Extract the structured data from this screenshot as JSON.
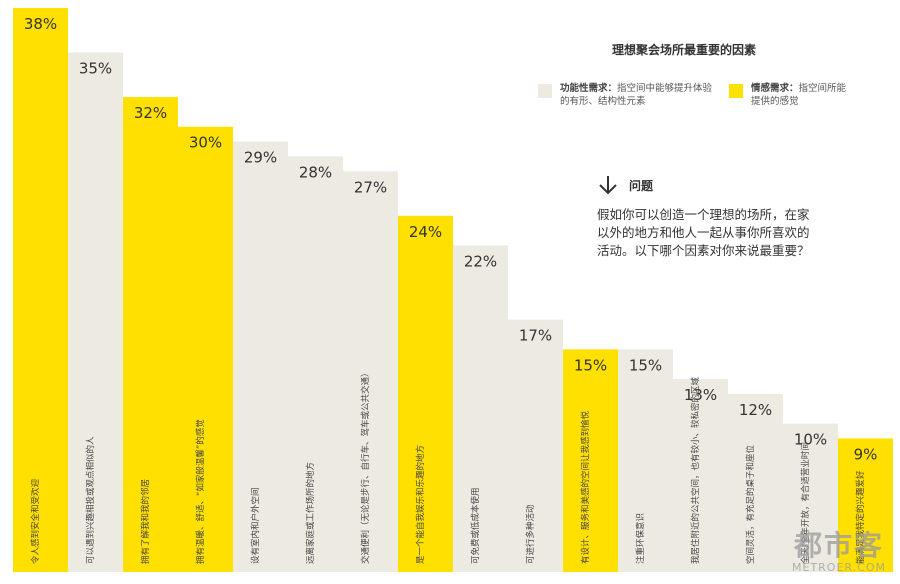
{
  "chart_data": {
    "type": "bar",
    "title": "理想聚会场所最重要的因素",
    "categories": [
      "令人感到安全和受欢迎",
      "可以遇到兴趣相投或观点相似的人",
      "拥有了解我和我的邻居",
      "拥有温暖、舒适、“如家般温馨”的感觉",
      "设有室内和户外空间",
      "远离家庭或工作场所的地方",
      "交通便利（无论是步行、自行车、驾车或公共交通）",
      "是一个能自我娱乐和乐趣的地方",
      "可免费或低成本使用",
      "可进行多种活动",
      "有设计、服务和美感的空间让我感到愉悦",
      "注重环保意识",
      "我居住附近的公共空间，也有较小、较私密的区域",
      "空间灵活，有充足的桌子和座位",
      "全天/全年开放，有合适营业时间",
      "能满足我特定的兴趣爱好"
    ],
    "values": [
      38,
      35,
      32,
      30,
      29,
      28,
      27,
      24,
      22,
      17,
      15,
      15,
      13,
      12,
      10,
      9
    ],
    "bar_types": [
      "emotional",
      "functional",
      "emotional",
      "emotional",
      "functional",
      "functional",
      "functional",
      "emotional",
      "functional",
      "functional",
      "emotional",
      "functional",
      "functional",
      "functional",
      "functional",
      "emotional"
    ],
    "value_labels": [
      "38%",
      "35%",
      "32%",
      "30%",
      "29%",
      "28%",
      "27%",
      "24%",
      "22%",
      "17%",
      "15%",
      "15%",
      "13%",
      "12%",
      "10%",
      "9%"
    ],
    "ylim": [
      0,
      38
    ],
    "grid": false
  },
  "legend": {
    "title": "理想聚会场所最重要的因素",
    "functional_title": "功能性需求：",
    "functional_text": "指空间中能够提升体验的有形、结构性元素",
    "emotional_title": "情感需求：",
    "emotional_text": "指空间所能提供的感觉"
  },
  "question": {
    "heading": "问题",
    "text": "假如你可以创造一个理想的场所，在家以外的地方和他人一起从事你所喜欢的活动。以下哪个因素对你来说最重要？"
  },
  "watermark": {
    "cn": "都市客",
    "en": "METROER.COM"
  },
  "colors": {
    "emotional": "#FFE000",
    "functional": "#EDEAE2",
    "text": "#333333"
  },
  "icons": {
    "question_arrow": "arrow-down-icon"
  }
}
